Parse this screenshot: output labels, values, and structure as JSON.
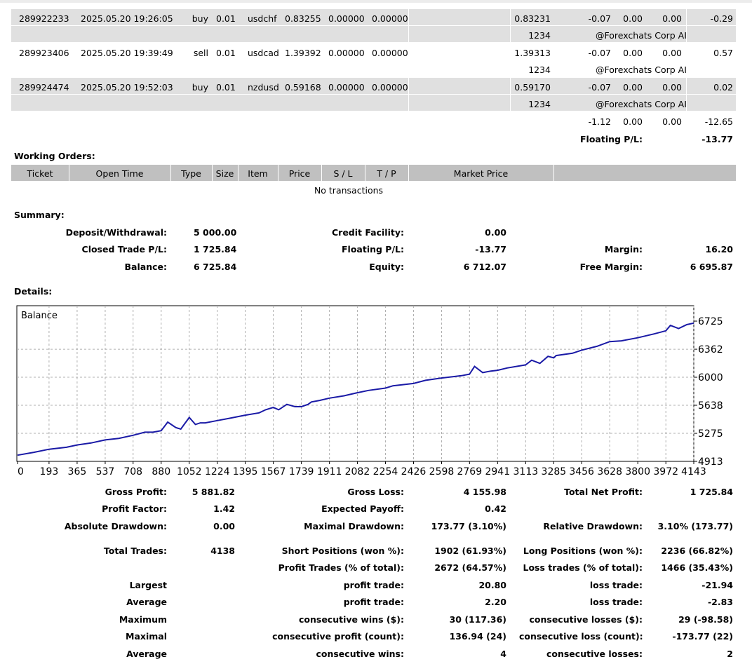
{
  "positions": [
    {
      "ticket": "289922233",
      "time": "2025.05.20 19:26:05",
      "type": "buy",
      "size": "0.01",
      "item": "usdchf",
      "price": "0.83255",
      "sl": "0.00000",
      "tp": "0.00000",
      "market": "0.83231",
      "commission": "-0.07",
      "taxes": "0.00",
      "swap": "0.00",
      "profit": "-0.29",
      "magic": "1234",
      "comment": "@Forexchats Corp AI"
    },
    {
      "ticket": "289923406",
      "time": "2025.05.20 19:39:49",
      "type": "sell",
      "size": "0.01",
      "item": "usdcad",
      "price": "1.39392",
      "sl": "0.00000",
      "tp": "0.00000",
      "market": "1.39313",
      "commission": "-0.07",
      "taxes": "0.00",
      "swap": "0.00",
      "profit": "0.57",
      "magic": "1234",
      "comment": "@Forexchats Corp AI"
    },
    {
      "ticket": "289924474",
      "time": "2025.05.20 19:52:03",
      "type": "buy",
      "size": "0.01",
      "item": "nzdusd",
      "price": "0.59168",
      "sl": "0.00000",
      "tp": "0.00000",
      "market": "0.59170",
      "commission": "-0.07",
      "taxes": "0.00",
      "swap": "0.00",
      "profit": "0.02",
      "magic": "1234",
      "comment": "@Forexchats Corp AI"
    }
  ],
  "totals": {
    "commission": "-1.12",
    "taxes": "0.00",
    "swap": "0.00",
    "profit": "-12.65",
    "floating_label": "Floating P/L:",
    "floating_value": "-13.77"
  },
  "working_orders": {
    "title": "Working Orders:",
    "headers": [
      "Ticket",
      "Open Time",
      "Type",
      "Size",
      "Item",
      "Price",
      "S / L",
      "T / P",
      "Market Price"
    ],
    "empty": "No transactions"
  },
  "summary": {
    "title": "Summary:",
    "deposit_label": "Deposit/Withdrawal:",
    "deposit_value": "5 000.00",
    "credit_label": "Credit Facility:",
    "credit_value": "0.00",
    "closed_label": "Closed Trade P/L:",
    "closed_value": "1 725.84",
    "floating_label": "Floating P/L:",
    "floating_value": "-13.77",
    "margin_label": "Margin:",
    "margin_value": "16.20",
    "balance_label": "Balance:",
    "balance_value": "6 725.84",
    "equity_label": "Equity:",
    "equity_value": "6 712.07",
    "free_margin_label": "Free Margin:",
    "free_margin_value": "6 695.87"
  },
  "details": {
    "title": "Details:"
  },
  "chart_data": {
    "type": "line",
    "title": "Balance",
    "x_ticks": [
      "0",
      "193",
      "365",
      "537",
      "708",
      "880",
      "1052",
      "1224",
      "1395",
      "1567",
      "1739",
      "1911",
      "2082",
      "2254",
      "2426",
      "2598",
      "2769",
      "2941",
      "3113",
      "3285",
      "3456",
      "3628",
      "3800",
      "3972",
      "4143"
    ],
    "y_ticks": [
      "6725",
      "6362",
      "6000",
      "5638",
      "5275",
      "4913"
    ],
    "xlim": [
      0,
      4143
    ],
    "ylim": [
      4913,
      6725
    ],
    "series": [
      {
        "x": [
          0,
          100,
          193,
          300,
          365,
          450,
          537,
          620,
          708,
          780,
          830,
          880,
          920,
          970,
          1000,
          1052,
          1090,
          1120,
          1150,
          1224,
          1300,
          1395,
          1480,
          1520,
          1567,
          1600,
          1650,
          1700,
          1739,
          1780,
          1800,
          1850,
          1911,
          2000,
          2082,
          2150,
          2254,
          2300,
          2426,
          2500,
          2598,
          2680,
          2720,
          2769,
          2800,
          2850,
          2900,
          2941,
          3000,
          3113,
          3150,
          3200,
          3250,
          3285,
          3300,
          3400,
          3456,
          3550,
          3628,
          3700,
          3800,
          3900,
          3972,
          4000,
          4050,
          4100,
          4143
        ],
        "y": [
          4993,
          5030,
          5070,
          5095,
          5125,
          5150,
          5190,
          5210,
          5250,
          5290,
          5290,
          5310,
          5420,
          5350,
          5330,
          5480,
          5390,
          5410,
          5410,
          5440,
          5470,
          5510,
          5540,
          5580,
          5610,
          5580,
          5650,
          5620,
          5620,
          5650,
          5680,
          5700,
          5730,
          5760,
          5800,
          5830,
          5860,
          5890,
          5920,
          5960,
          5990,
          6010,
          6020,
          6040,
          6140,
          6060,
          6080,
          6090,
          6120,
          6160,
          6220,
          6180,
          6270,
          6250,
          6280,
          6310,
          6350,
          6400,
          6460,
          6470,
          6510,
          6560,
          6600,
          6670,
          6630,
          6680,
          6700
        ]
      }
    ]
  },
  "stats": {
    "gross_profit_label": "Gross Profit:",
    "gross_profit": "5 881.82",
    "gross_loss_label": "Gross Loss:",
    "gross_loss": "4 155.98",
    "net_profit_label": "Total Net Profit:",
    "net_profit": "1 725.84",
    "profit_factor_label": "Profit Factor:",
    "profit_factor": "1.42",
    "expected_payoff_label": "Expected Payoff:",
    "expected_payoff": "0.42",
    "abs_dd_label": "Absolute Drawdown:",
    "abs_dd": "0.00",
    "max_dd_label": "Maximal Drawdown:",
    "max_dd": "173.77 (3.10%)",
    "rel_dd_label": "Relative Drawdown:",
    "rel_dd": "3.10% (173.77)",
    "total_trades_label": "Total Trades:",
    "total_trades": "4138",
    "short_label": "Short Positions (won %):",
    "short": "1902 (61.93%)",
    "long_label": "Long Positions (won %):",
    "long": "2236 (66.82%)",
    "profit_trades_label": "Profit Trades (% of total):",
    "profit_trades": "2672 (64.57%)",
    "loss_trades_label": "Loss trades (% of total):",
    "loss_trades": "1466 (35.43%)",
    "largest_label": "Largest",
    "largest_profit_label": "profit trade:",
    "largest_profit": "20.80",
    "largest_loss_label": "loss trade:",
    "largest_loss": "-21.94",
    "average_label": "Average",
    "average_profit_label": "profit trade:",
    "average_profit": "2.20",
    "average_loss_label": "loss trade:",
    "average_loss": "-2.83",
    "maximum_label": "Maximum",
    "max_cons_wins_label": "consecutive wins ($):",
    "max_cons_wins": "30 (117.36)",
    "max_cons_losses_label": "consecutive losses ($):",
    "max_cons_losses": "29 (-98.58)",
    "maximal_label": "Maximal",
    "maximal_profit_label": "consecutive profit (count):",
    "maximal_profit": "136.94 (24)",
    "maximal_loss_label": "consecutive loss (count):",
    "maximal_loss": "-173.77 (22)",
    "average2_label": "Average",
    "avg_cons_wins_label": "consecutive wins:",
    "avg_cons_wins": "4",
    "avg_cons_losses_label": "consecutive losses:",
    "avg_cons_losses": "2"
  }
}
